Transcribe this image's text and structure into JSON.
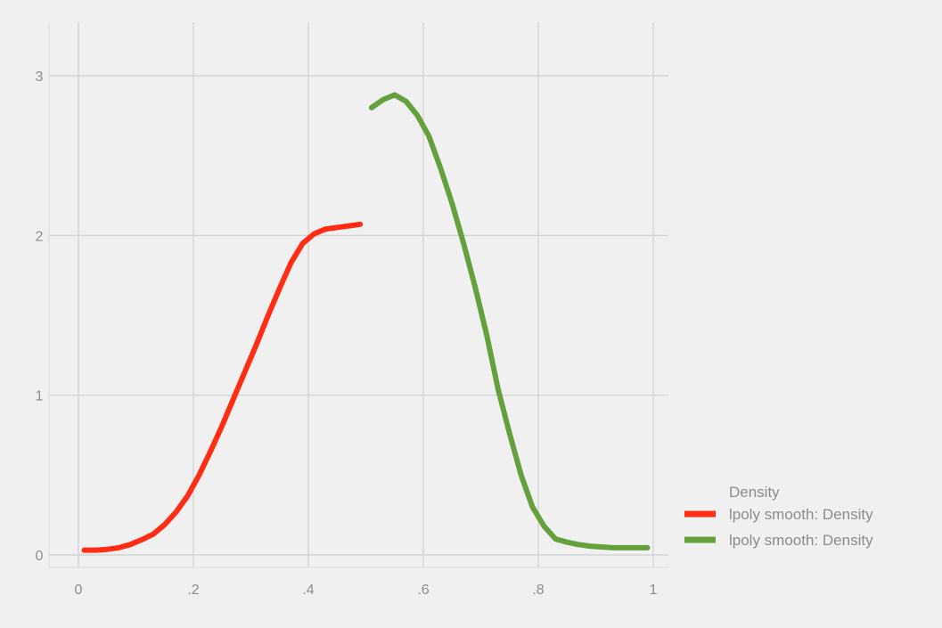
{
  "chart_data": {
    "type": "line",
    "title": "",
    "xlabel": "",
    "ylabel": "",
    "xlim": [
      0,
      1
    ],
    "ylim": [
      0,
      3
    ],
    "x_ticks": [
      {
        "value": 0,
        "label": "0"
      },
      {
        "value": 0.2,
        "label": ".2"
      },
      {
        "value": 0.4,
        "label": ".4"
      },
      {
        "value": 0.6,
        "label": ".6"
      },
      {
        "value": 0.8,
        "label": ".8"
      },
      {
        "value": 1,
        "label": "1"
      }
    ],
    "y_ticks": [
      {
        "value": 0,
        "label": "0"
      },
      {
        "value": 1,
        "label": "1"
      },
      {
        "value": 2,
        "label": "2"
      },
      {
        "value": 3,
        "label": "3"
      }
    ],
    "grid": true,
    "legend": {
      "title": "Density",
      "placement": "right-bottom"
    },
    "series": [
      {
        "name": "lpoly smooth: Density",
        "color": "#ff2d14",
        "x": [
          0.01,
          0.03,
          0.05,
          0.07,
          0.09,
          0.11,
          0.13,
          0.15,
          0.17,
          0.19,
          0.21,
          0.23,
          0.25,
          0.27,
          0.29,
          0.31,
          0.33,
          0.35,
          0.37,
          0.39,
          0.41,
          0.43,
          0.45,
          0.47,
          0.49
        ],
        "y": [
          0.03,
          0.03,
          0.035,
          0.045,
          0.065,
          0.095,
          0.13,
          0.19,
          0.27,
          0.37,
          0.5,
          0.65,
          0.81,
          0.98,
          1.15,
          1.32,
          1.5,
          1.67,
          1.83,
          1.95,
          2.01,
          2.04,
          2.05,
          2.06,
          2.07
        ]
      },
      {
        "name": "lpoly smooth: Density",
        "color": "#64a03c",
        "x": [
          0.51,
          0.53,
          0.55,
          0.57,
          0.59,
          0.61,
          0.63,
          0.65,
          0.67,
          0.69,
          0.71,
          0.73,
          0.75,
          0.77,
          0.79,
          0.81,
          0.83,
          0.85,
          0.87,
          0.89,
          0.91,
          0.93,
          0.95,
          0.97,
          0.99
        ],
        "y": [
          2.8,
          2.85,
          2.88,
          2.84,
          2.75,
          2.62,
          2.42,
          2.2,
          1.95,
          1.68,
          1.38,
          1.04,
          0.76,
          0.5,
          0.3,
          0.18,
          0.1,
          0.08,
          0.065,
          0.055,
          0.05,
          0.045,
          0.045,
          0.045,
          0.045
        ]
      }
    ]
  }
}
